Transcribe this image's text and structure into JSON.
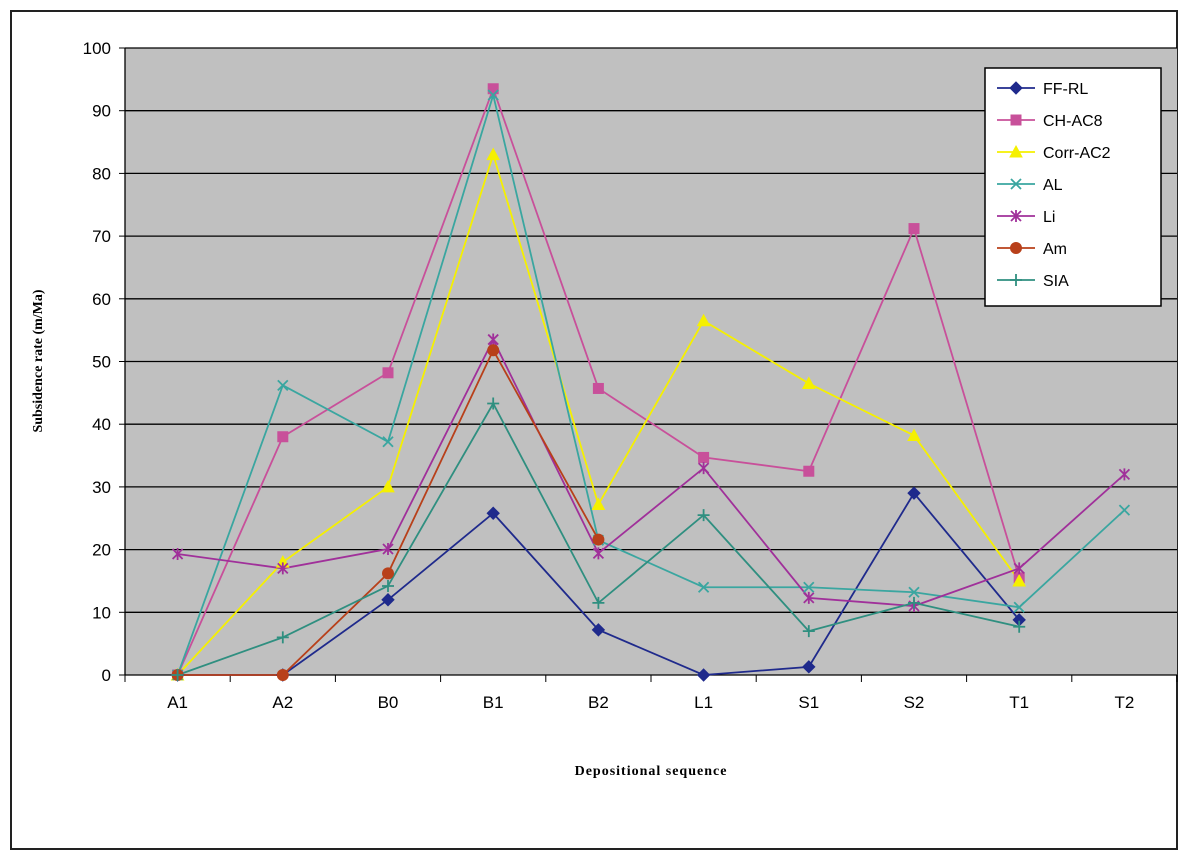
{
  "chart_data": {
    "type": "line",
    "title": "",
    "xlabel": "Depositional sequence",
    "ylabel": "Subsidence rate (m/Ma)",
    "categories": [
      "A1",
      "A2",
      "B0",
      "B1",
      "B2",
      "L1",
      "S1",
      "S2",
      "T1",
      "T2"
    ],
    "ylim": [
      0,
      100
    ],
    "yticks": [
      0,
      10,
      20,
      30,
      40,
      50,
      60,
      70,
      80,
      90,
      100
    ],
    "grid": true,
    "plot_background": "#c0c0c0",
    "legend_position": "top-right",
    "series": [
      {
        "name": "FF-RL",
        "color": "#1f2a8c",
        "marker": "diamond",
        "values": [
          0,
          0,
          12,
          25.8,
          7.2,
          0,
          1.3,
          29,
          8.8,
          null
        ]
      },
      {
        "name": "CH-AC8",
        "color": "#c8509a",
        "marker": "square",
        "values": [
          0,
          38,
          48.2,
          93.5,
          45.7,
          34.7,
          32.5,
          71.2,
          15.5,
          null
        ]
      },
      {
        "name": "Corr-AC2",
        "color": "#f5f000",
        "marker": "triangle",
        "values": [
          0,
          18,
          30,
          83,
          27.2,
          56.5,
          46.5,
          38.2,
          15,
          null
        ]
      },
      {
        "name": "AL",
        "color": "#3aa6a0",
        "marker": "x",
        "values": [
          0,
          46.2,
          37.2,
          92.5,
          21.5,
          14,
          14,
          13.2,
          10.8,
          26.3
        ]
      },
      {
        "name": "Li",
        "color": "#a0309a",
        "marker": "star",
        "values": [
          19.3,
          17,
          20.1,
          53.5,
          19.4,
          33,
          12.3,
          11,
          17,
          32
        ]
      },
      {
        "name": "Am",
        "color": "#b8401a",
        "marker": "circle",
        "values": [
          0,
          0,
          16.2,
          51.8,
          21.6,
          null,
          null,
          null,
          null,
          null
        ]
      },
      {
        "name": "SIA",
        "color": "#2f8f80",
        "marker": "plus",
        "values": [
          0,
          6,
          14.2,
          43.3,
          11.5,
          25.5,
          7,
          11.5,
          7.7,
          null
        ]
      }
    ]
  }
}
